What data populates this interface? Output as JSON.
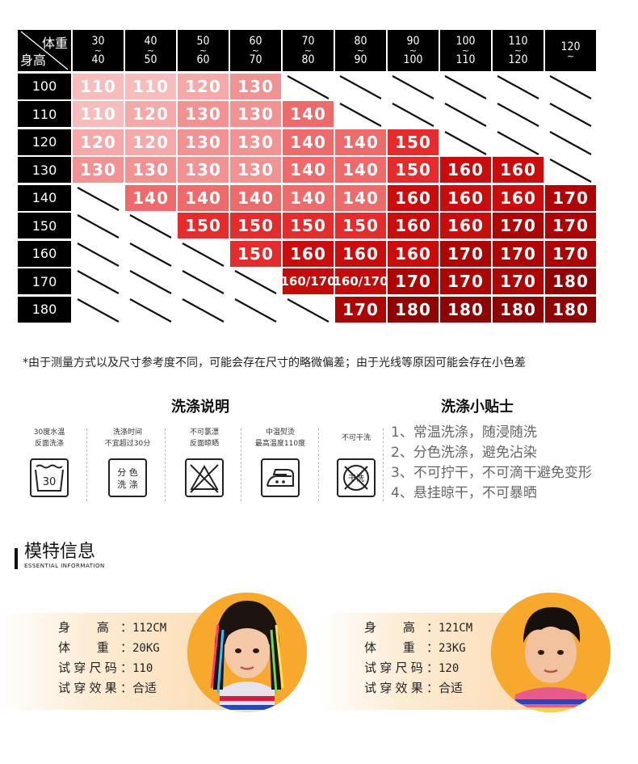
{
  "chart": {
    "corner_weight": "体重",
    "corner_height": "身高",
    "weights": [
      {
        "top": "30",
        "mid": "~",
        "bottom": "40"
      },
      {
        "top": "40",
        "mid": "~",
        "bottom": "50"
      },
      {
        "top": "50",
        "mid": "~",
        "bottom": "60"
      },
      {
        "top": "60",
        "mid": "~",
        "bottom": "70"
      },
      {
        "top": "70",
        "mid": "~",
        "bottom": "80"
      },
      {
        "top": "80",
        "mid": "~",
        "bottom": "90"
      },
      {
        "top": "90",
        "mid": "~",
        "bottom": "100"
      },
      {
        "top": "100",
        "mid": "~",
        "bottom": "110"
      },
      {
        "top": "110",
        "mid": "~",
        "bottom": "120"
      },
      {
        "top": "120",
        "mid": "~",
        "bottom": ""
      }
    ],
    "heights": [
      "100",
      "110",
      "120",
      "130",
      "140",
      "150",
      "160",
      "170",
      "180"
    ],
    "rows": [
      [
        "110",
        "110",
        "120",
        "130",
        "",
        "",
        "",
        "",
        "",
        ""
      ],
      [
        "110",
        "120",
        "130",
        "130",
        "140",
        "",
        "",
        "",
        "",
        ""
      ],
      [
        "120",
        "120",
        "130",
        "130",
        "140",
        "140",
        "150",
        "",
        "",
        ""
      ],
      [
        "130",
        "130",
        "130",
        "130",
        "140",
        "140",
        "150",
        "160",
        "160",
        ""
      ],
      [
        "",
        "140",
        "140",
        "140",
        "140",
        "140",
        "160",
        "160",
        "160",
        "170"
      ],
      [
        "",
        "",
        "150",
        "150",
        "150",
        "150",
        "160",
        "160",
        "170",
        "170"
      ],
      [
        "",
        "",
        "",
        "150",
        "160",
        "160",
        "160",
        "170",
        "170",
        "170"
      ],
      [
        "",
        "",
        "",
        "",
        "160/170",
        "160/170",
        "170",
        "170",
        "170",
        "180"
      ],
      [
        "",
        "",
        "",
        "",
        "",
        "170",
        "180",
        "180",
        "180",
        "180"
      ]
    ],
    "size_colors": {
      "110": "#f7bcbc",
      "120": "#f5a9a9",
      "130": "#f29393",
      "140": "#ee6b6b",
      "150": "#e52b2b",
      "160": "#c90d0d",
      "160/170": "#c20c0c",
      "170": "#ad0404",
      "180": "#8f0303"
    }
  },
  "note": "*由于测量方式以及尺寸参考度不同，可能会存在尺寸的略微偏差；由于光线等原因可能会存在小色差",
  "washing": {
    "title": "洗涤说明",
    "items": [
      {
        "line1": "30度水温",
        "line2": "反面洗涤",
        "icon": "wash-30-icon",
        "icon_text": "30"
      },
      {
        "line1": "洗涤时间",
        "line2": "不宜超过30分",
        "icon": "separate-wash-icon",
        "icon_text_1": "分 色",
        "icon_text_2": "洗 涤"
      },
      {
        "line1": "不可氯漂",
        "line2": "反面晾晒",
        "icon": "no-bleach-icon"
      },
      {
        "line1": "中温熨烫",
        "line2": "最高温度110度",
        "icon": "iron-medium-icon"
      },
      {
        "line1": "不可干洗",
        "line2": "",
        "icon": "no-dry-clean-icon",
        "icon_text": "干洗"
      }
    ]
  },
  "tips": {
    "title": "洗涤小贴士",
    "items": [
      "1、常温洗涤，随浸随洗",
      "2、分色洗涤，避免沾染",
      "3、不可拧干，不可滴干避免变形",
      "4、悬挂晾干，不可暴晒"
    ]
  },
  "model": {
    "title": "模特信息",
    "subtitle": "ESSENTIAL INFORMATION",
    "girl": {
      "height_label": "身  高：",
      "height": "112CM",
      "weight_label": "体  重：",
      "weight": "20KG",
      "size_label": "试穿尺码：",
      "size": "110",
      "effect_label": "试穿效果：",
      "effect": "合适"
    },
    "boy": {
      "height_label": "身  高：",
      "height": "121CM",
      "weight_label": "体  重：",
      "weight": "23KG",
      "size_label": "试穿尺码：",
      "size": "120",
      "effect_label": "试穿效果：",
      "effect": "合适"
    }
  },
  "colors": {
    "header_bg": "#000000",
    "accent_orange": "#f7a92d",
    "band_orange": "#fbdcb3"
  }
}
